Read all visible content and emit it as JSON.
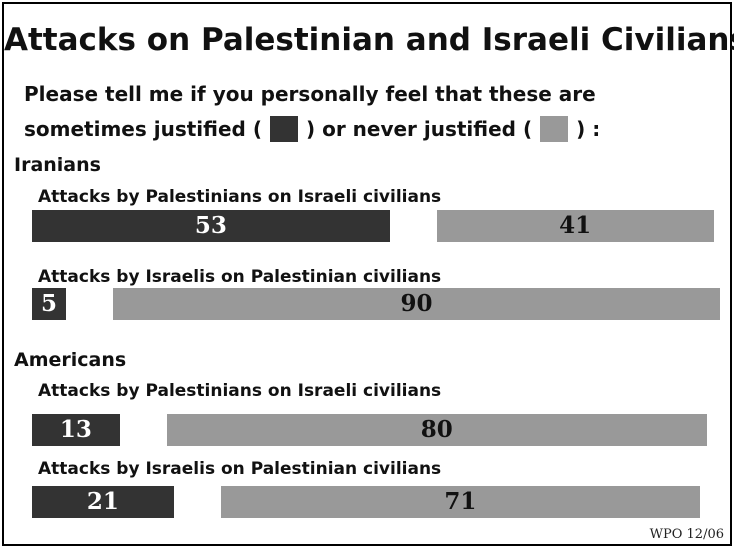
{
  "chart_data": {
    "type": "bar",
    "title": "Attacks on Palestinian and Israeli Civilians",
    "question_line1": "Please tell me if you personally feel that these are",
    "question_line2_a": "sometimes justified (",
    "question_line2_b": ")  or never justified (",
    "question_line2_c": ") :",
    "colors": {
      "sometimes": "#333333",
      "never": "#999999"
    },
    "groups": [
      {
        "name": "Iranians",
        "items": [
          {
            "label": "Attacks by Palestinians on Israeli civilians",
            "sometimes": 53,
            "never": 41
          },
          {
            "label": "Attacks by Israelis on Palestinian civilians",
            "sometimes": 5,
            "never": 90
          }
        ]
      },
      {
        "name": "Americans",
        "items": [
          {
            "label": "Attacks by Palestinians on Israeli civilians",
            "sometimes": 13,
            "never": 80
          },
          {
            "label": "Attacks by Israelis on Palestinian civilians",
            "sometimes": 21,
            "never": 71
          }
        ]
      }
    ],
    "source": "WPO 12/06"
  }
}
